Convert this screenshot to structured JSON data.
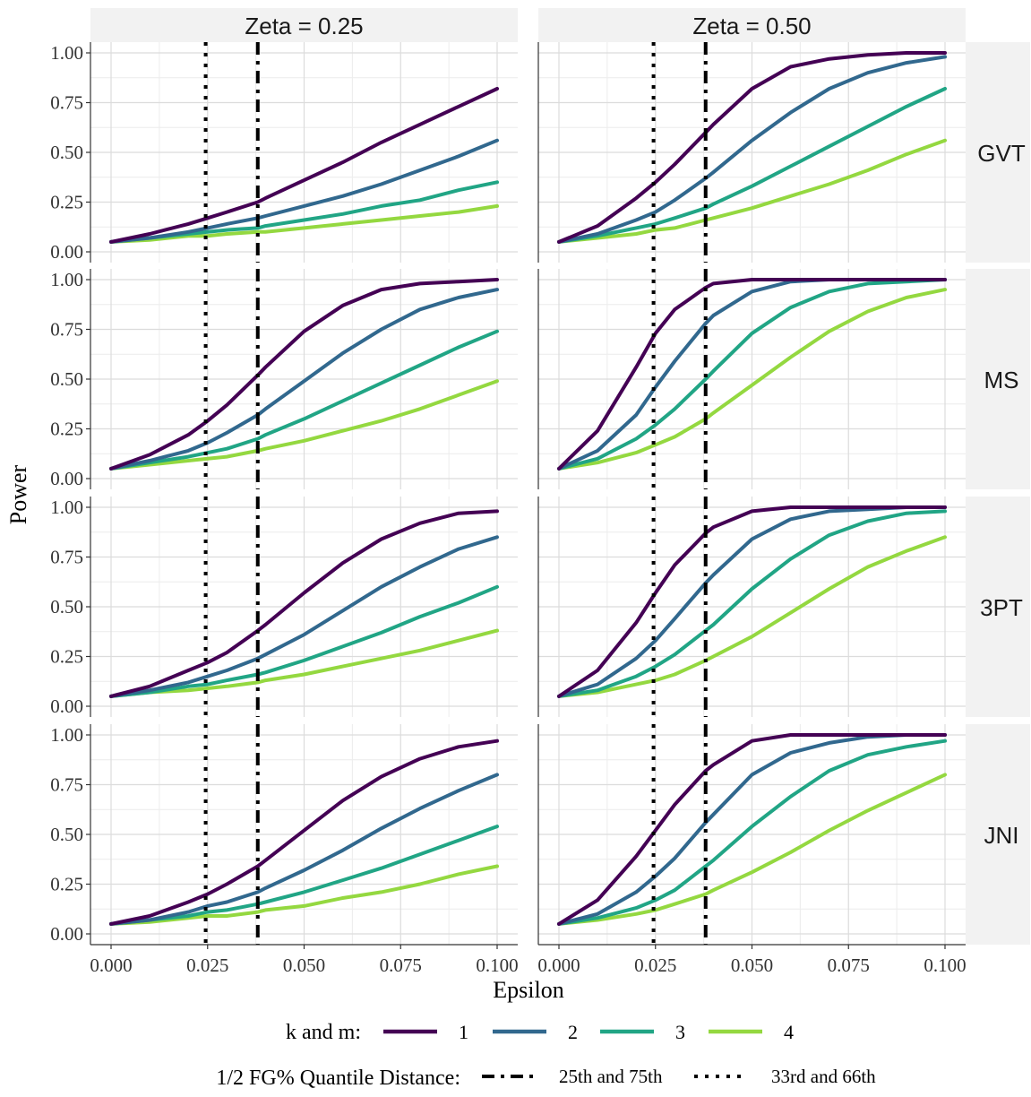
{
  "chart_data": {
    "type": "line",
    "facet_cols": [
      "Zeta = 0.25",
      "Zeta = 0.50"
    ],
    "facet_rows": [
      "GVT",
      "MS",
      "3PT",
      "JNI"
    ],
    "xlabel": "Epsilon",
    "ylabel": "Power",
    "xlim": [
      0.0,
      0.1
    ],
    "ylim": [
      0.0,
      1.0
    ],
    "x_ticks": [
      "0.000",
      "0.025",
      "0.050",
      "0.075",
      "0.100"
    ],
    "y_ticks": [
      "0.00",
      "0.25",
      "0.50",
      "0.75",
      "1.00"
    ],
    "grid": true,
    "legend_position": "bottom",
    "legend_km": {
      "title": "k and m:",
      "entries": [
        {
          "label": "1",
          "color": "#440154"
        },
        {
          "label": "2",
          "color": "#31688E"
        },
        {
          "label": "3",
          "color": "#21A585"
        },
        {
          "label": "4",
          "color": "#94D840"
        }
      ]
    },
    "legend_vlines": {
      "title": "1/2 FG% Quantile Distance:",
      "entries": [
        {
          "label": "25th and 75th",
          "style": "dashed"
        },
        {
          "label": "33rd and 66th",
          "style": "dotted"
        }
      ]
    },
    "vlines": [
      {
        "x": 0.038,
        "style": "dashed"
      },
      {
        "x": 0.0245,
        "style": "dotted"
      }
    ],
    "x": [
      0.0,
      0.01,
      0.02,
      0.025,
      0.03,
      0.038,
      0.04,
      0.05,
      0.06,
      0.07,
      0.08,
      0.09,
      0.1
    ],
    "panels": [
      {
        "col": 0,
        "row": 0,
        "series": [
          {
            "name": "1",
            "values": [
              0.05,
              0.09,
              0.14,
              0.17,
              0.2,
              0.25,
              0.27,
              0.36,
              0.45,
              0.55,
              0.64,
              0.73,
              0.82
            ]
          },
          {
            "name": "2",
            "values": [
              0.05,
              0.07,
              0.1,
              0.12,
              0.14,
              0.17,
              0.18,
              0.23,
              0.28,
              0.34,
              0.41,
              0.48,
              0.56
            ]
          },
          {
            "name": "3",
            "values": [
              0.05,
              0.07,
              0.09,
              0.1,
              0.11,
              0.12,
              0.13,
              0.16,
              0.19,
              0.23,
              0.26,
              0.31,
              0.35
            ]
          },
          {
            "name": "4",
            "values": [
              0.05,
              0.06,
              0.08,
              0.08,
              0.09,
              0.1,
              0.1,
              0.12,
              0.14,
              0.16,
              0.18,
              0.2,
              0.23
            ]
          }
        ]
      },
      {
        "col": 1,
        "row": 0,
        "series": [
          {
            "name": "1",
            "values": [
              0.05,
              0.13,
              0.27,
              0.35,
              0.44,
              0.6,
              0.64,
              0.82,
              0.93,
              0.97,
              0.99,
              1.0,
              1.0
            ]
          },
          {
            "name": "2",
            "values": [
              0.05,
              0.09,
              0.16,
              0.2,
              0.26,
              0.37,
              0.4,
              0.56,
              0.7,
              0.82,
              0.9,
              0.95,
              0.98
            ]
          },
          {
            "name": "3",
            "values": [
              0.05,
              0.08,
              0.12,
              0.14,
              0.17,
              0.22,
              0.24,
              0.33,
              0.43,
              0.53,
              0.63,
              0.73,
              0.82
            ]
          },
          {
            "name": "4",
            "values": [
              0.05,
              0.07,
              0.09,
              0.11,
              0.12,
              0.16,
              0.17,
              0.22,
              0.28,
              0.34,
              0.41,
              0.49,
              0.56
            ]
          }
        ]
      },
      {
        "col": 0,
        "row": 1,
        "series": [
          {
            "name": "1",
            "values": [
              0.05,
              0.12,
              0.22,
              0.29,
              0.37,
              0.52,
              0.56,
              0.74,
              0.87,
              0.95,
              0.98,
              0.99,
              1.0
            ]
          },
          {
            "name": "2",
            "values": [
              0.05,
              0.09,
              0.14,
              0.18,
              0.23,
              0.32,
              0.35,
              0.49,
              0.63,
              0.75,
              0.85,
              0.91,
              0.95
            ]
          },
          {
            "name": "3",
            "values": [
              0.05,
              0.08,
              0.11,
              0.13,
              0.15,
              0.2,
              0.22,
              0.3,
              0.39,
              0.48,
              0.57,
              0.66,
              0.74
            ]
          },
          {
            "name": "4",
            "values": [
              0.05,
              0.07,
              0.09,
              0.1,
              0.11,
              0.14,
              0.15,
              0.19,
              0.24,
              0.29,
              0.35,
              0.42,
              0.49
            ]
          }
        ]
      },
      {
        "col": 1,
        "row": 1,
        "series": [
          {
            "name": "1",
            "values": [
              0.05,
              0.24,
              0.56,
              0.73,
              0.85,
              0.96,
              0.98,
              1.0,
              1.0,
              1.0,
              1.0,
              1.0,
              1.0
            ]
          },
          {
            "name": "2",
            "values": [
              0.05,
              0.14,
              0.32,
              0.46,
              0.59,
              0.78,
              0.82,
              0.94,
              0.99,
              1.0,
              1.0,
              1.0,
              1.0
            ]
          },
          {
            "name": "3",
            "values": [
              0.05,
              0.1,
              0.2,
              0.27,
              0.35,
              0.5,
              0.54,
              0.73,
              0.86,
              0.94,
              0.98,
              0.99,
              1.0
            ]
          },
          {
            "name": "4",
            "values": [
              0.05,
              0.08,
              0.13,
              0.17,
              0.21,
              0.3,
              0.33,
              0.47,
              0.61,
              0.74,
              0.84,
              0.91,
              0.95
            ]
          }
        ]
      },
      {
        "col": 0,
        "row": 2,
        "series": [
          {
            "name": "1",
            "values": [
              0.05,
              0.1,
              0.18,
              0.22,
              0.27,
              0.38,
              0.41,
              0.57,
              0.72,
              0.84,
              0.92,
              0.97,
              0.98
            ]
          },
          {
            "name": "2",
            "values": [
              0.05,
              0.08,
              0.12,
              0.15,
              0.18,
              0.24,
              0.26,
              0.36,
              0.48,
              0.6,
              0.7,
              0.79,
              0.85
            ]
          },
          {
            "name": "3",
            "values": [
              0.05,
              0.07,
              0.1,
              0.11,
              0.13,
              0.16,
              0.17,
              0.23,
              0.3,
              0.37,
              0.45,
              0.52,
              0.6
            ]
          },
          {
            "name": "4",
            "values": [
              0.05,
              0.07,
              0.08,
              0.09,
              0.1,
              0.12,
              0.13,
              0.16,
              0.2,
              0.24,
              0.28,
              0.33,
              0.38
            ]
          }
        ]
      },
      {
        "col": 1,
        "row": 2,
        "series": [
          {
            "name": "1",
            "values": [
              0.05,
              0.18,
              0.42,
              0.57,
              0.71,
              0.87,
              0.9,
              0.98,
              1.0,
              1.0,
              1.0,
              1.0,
              1.0
            ]
          },
          {
            "name": "2",
            "values": [
              0.05,
              0.11,
              0.24,
              0.33,
              0.44,
              0.62,
              0.66,
              0.84,
              0.94,
              0.98,
              0.99,
              1.0,
              1.0
            ]
          },
          {
            "name": "3",
            "values": [
              0.05,
              0.08,
              0.15,
              0.2,
              0.26,
              0.38,
              0.41,
              0.59,
              0.74,
              0.86,
              0.93,
              0.97,
              0.98
            ]
          },
          {
            "name": "4",
            "values": [
              0.05,
              0.07,
              0.11,
              0.13,
              0.16,
              0.23,
              0.25,
              0.35,
              0.47,
              0.59,
              0.7,
              0.78,
              0.85
            ]
          }
        ]
      },
      {
        "col": 0,
        "row": 3,
        "series": [
          {
            "name": "1",
            "values": [
              0.05,
              0.09,
              0.16,
              0.2,
              0.25,
              0.34,
              0.37,
              0.52,
              0.67,
              0.79,
              0.88,
              0.94,
              0.97
            ]
          },
          {
            "name": "2",
            "values": [
              0.05,
              0.07,
              0.11,
              0.14,
              0.16,
              0.21,
              0.23,
              0.32,
              0.42,
              0.53,
              0.63,
              0.72,
              0.8
            ]
          },
          {
            "name": "3",
            "values": [
              0.05,
              0.07,
              0.09,
              0.11,
              0.12,
              0.15,
              0.16,
              0.21,
              0.27,
              0.33,
              0.4,
              0.47,
              0.54
            ]
          },
          {
            "name": "4",
            "values": [
              0.05,
              0.06,
              0.08,
              0.09,
              0.09,
              0.11,
              0.12,
              0.14,
              0.18,
              0.21,
              0.25,
              0.3,
              0.34
            ]
          }
        ]
      },
      {
        "col": 1,
        "row": 3,
        "series": [
          {
            "name": "1",
            "values": [
              0.05,
              0.17,
              0.39,
              0.52,
              0.65,
              0.82,
              0.85,
              0.97,
              1.0,
              1.0,
              1.0,
              1.0,
              1.0
            ]
          },
          {
            "name": "2",
            "values": [
              0.05,
              0.1,
              0.21,
              0.29,
              0.38,
              0.56,
              0.6,
              0.8,
              0.91,
              0.96,
              0.99,
              1.0,
              1.0
            ]
          },
          {
            "name": "3",
            "values": [
              0.05,
              0.08,
              0.13,
              0.17,
              0.22,
              0.34,
              0.37,
              0.54,
              0.69,
              0.82,
              0.9,
              0.94,
              0.97
            ]
          },
          {
            "name": "4",
            "values": [
              0.05,
              0.07,
              0.1,
              0.12,
              0.15,
              0.2,
              0.22,
              0.31,
              0.41,
              0.52,
              0.62,
              0.71,
              0.8
            ]
          }
        ]
      }
    ]
  }
}
